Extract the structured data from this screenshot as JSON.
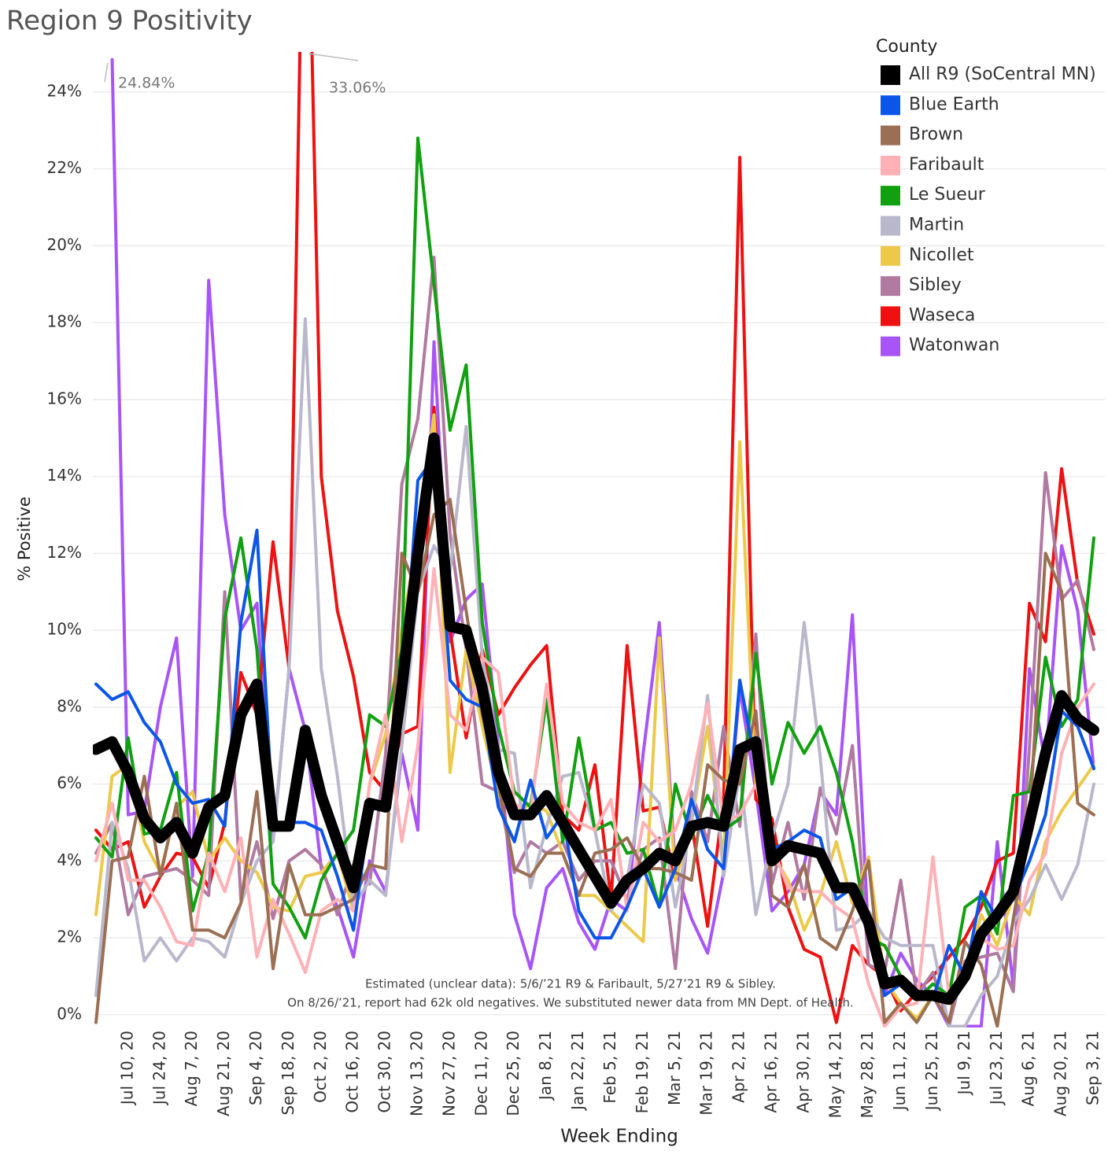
{
  "chart_data": {
    "type": "line",
    "title": "Region 9 Positivity",
    "x_label": "Week Ending",
    "y_label": "% Positive",
    "legend_title": "County",
    "legend": "top-right",
    "grid": true,
    "annotations": [
      "24.84%",
      "33.06%"
    ],
    "notes": [
      "Estimated (unclear data): 5/6/’21 R9 & Faribault,  5/27’21  R9 & Sibley.",
      "On 8/26/’21, report had 62k old negatives. We substituted newer data from MN Dept. of Health."
    ],
    "ylim": [
      -0.27,
      25
    ],
    "yticks": [
      {
        "value": 0,
        "label": "0%"
      },
      {
        "value": 2,
        "label": "2%"
      },
      {
        "value": 4,
        "label": "4%"
      },
      {
        "value": 6,
        "label": "6%"
      },
      {
        "value": 8,
        "label": "8%"
      },
      {
        "value": 10,
        "label": "10%"
      },
      {
        "value": 12,
        "label": "12%"
      },
      {
        "value": 14,
        "label": "14%"
      },
      {
        "value": 16,
        "label": "16%"
      },
      {
        "value": 18,
        "label": "18%"
      },
      {
        "value": 20,
        "label": "20%"
      },
      {
        "value": 22,
        "label": "22%"
      },
      {
        "value": 24,
        "label": "24%"
      }
    ],
    "categories": [
      null,
      null,
      "Jul 10, 20",
      null,
      "Jul 24, 20",
      null,
      "Aug 7, 20",
      null,
      "Aug 21, 20",
      null,
      "Sep 4, 20",
      null,
      "Sep 18, 20",
      null,
      "Oct 2, 20",
      null,
      "Oct 16, 20",
      null,
      "Oct 30, 20",
      null,
      "Nov 13, 20",
      null,
      "Nov 27, 20",
      null,
      "Dec 11, 20",
      null,
      "Dec 25, 20",
      null,
      "Jan 8, 21",
      null,
      "Jan 22, 21",
      null,
      "Feb 5, 21",
      null,
      "Feb 19, 21",
      null,
      "Mar 5, 21",
      null,
      "Mar 19, 21",
      null,
      "Apr 2, 21",
      null,
      "Apr 16, 21",
      null,
      "Apr 30, 21",
      null,
      "May 14, 21",
      null,
      "May 28, 21",
      null,
      "Jun 11, 21",
      null,
      "Jun 25, 21",
      null,
      "Jul 9, 21",
      null,
      "Jul 23, 21",
      null,
      "Aug 6, 21",
      null,
      "Aug 20, 21",
      null,
      "Sep 3, 21"
    ],
    "series": [
      {
        "name": "All R9 (SoCentral MN)",
        "color": "#000000",
        "values": [
          6.9,
          7.1,
          6.3,
          5.1,
          4.6,
          5.0,
          4.2,
          5.4,
          5.7,
          7.8,
          8.6,
          4.9,
          4.9,
          7.4,
          5.7,
          4.5,
          3.3,
          5.5,
          5.4,
          8.5,
          12.0,
          15.0,
          10.1,
          10.0,
          8.5,
          6.3,
          5.2,
          5.2,
          5.7,
          5.0,
          4.3,
          3.6,
          2.9,
          3.5,
          3.8,
          4.2,
          4.0,
          4.9,
          5.0,
          4.9,
          6.9,
          7.1,
          4.0,
          4.4,
          4.3,
          4.2,
          3.3,
          3.3,
          2.4,
          0.8,
          0.9,
          0.5,
          0.5,
          0.4,
          1.0,
          2.1,
          2.6,
          3.2,
          5.0,
          6.8,
          8.3,
          7.7,
          7.4
        ]
      },
      {
        "name": "Blue Earth",
        "color": "#0b56e8",
        "values": [
          8.6,
          8.2,
          8.4,
          7.6,
          7.1,
          6.0,
          5.5,
          5.6,
          4.9,
          10.2,
          12.6,
          5.0,
          5.0,
          5.0,
          4.8,
          3.6,
          2.2,
          5.3,
          5.5,
          8.0,
          13.9,
          14.5,
          8.7,
          8.2,
          8.0,
          5.4,
          4.5,
          6.1,
          4.6,
          5.2,
          2.7,
          2.0,
          2.0,
          2.8,
          3.8,
          2.8,
          3.8,
          5.6,
          4.3,
          3.8,
          8.7,
          6.5,
          4.3,
          4.5,
          4.8,
          4.6,
          3.0,
          3.3,
          2.5,
          0.5,
          0.8,
          0.4,
          0.4,
          1.8,
          1.0,
          3.2,
          2.5,
          3.0,
          4.0,
          5.2,
          7.9,
          7.5,
          6.4
        ]
      },
      {
        "name": "Brown",
        "color": "#9a6f53",
        "values": [
          -0.2,
          4.0,
          4.1,
          6.2,
          3.6,
          5.5,
          2.2,
          2.2,
          2.0,
          2.9,
          5.8,
          1.2,
          3.9,
          2.6,
          2.6,
          2.8,
          3.0,
          3.9,
          3.8,
          12.0,
          11.0,
          13.0,
          13.4,
          10.5,
          7.8,
          6.0,
          3.8,
          3.6,
          4.2,
          4.2,
          3.1,
          4.2,
          4.3,
          4.6,
          3.8,
          3.8,
          3.7,
          3.5,
          6.5,
          6.1,
          6.0,
          7.9,
          3.1,
          2.8,
          3.9,
          2.0,
          1.7,
          2.7,
          4.0,
          -0.2,
          0.3,
          -0.2,
          0.5,
          -0.2,
          1.9,
          1.3,
          -0.3,
          2.5,
          5.0,
          12.0,
          11.0,
          5.5,
          5.2
        ]
      },
      {
        "name": "Faribault",
        "color": "#ffb1b6",
        "values": [
          4.0,
          5.5,
          3.5,
          3.5,
          2.8,
          1.9,
          1.8,
          4.2,
          3.2,
          4.6,
          1.5,
          3.0,
          2.1,
          1.1,
          2.7,
          3.0,
          2.7,
          6.0,
          7.8,
          4.5,
          7.0,
          11.6,
          7.8,
          7.4,
          9.3,
          8.9,
          5.5,
          5.2,
          8.6,
          5.5,
          5.0,
          4.8,
          5.6,
          2.7,
          5.0,
          4.5,
          4.8,
          6.0,
          8.1,
          5.0,
          5.2,
          6.0,
          4.4,
          3.3,
          3.2,
          3.2,
          2.8,
          2.5,
          0.8,
          -0.3,
          0.2,
          0.3,
          4.1,
          0.5,
          1.0,
          2.0,
          1.7,
          1.8,
          3.5,
          4.2,
          6.8,
          8.0,
          8.6
        ]
      },
      {
        "name": "Le Sueur",
        "color": "#10a010",
        "values": [
          4.6,
          4.1,
          7.2,
          4.7,
          4.8,
          6.3,
          2.7,
          4.2,
          10.3,
          12.4,
          9.5,
          3.4,
          2.8,
          2.0,
          3.5,
          4.2,
          4.8,
          7.8,
          7.5,
          9.5,
          22.8,
          19.0,
          15.2,
          16.9,
          10.2,
          7.5,
          5.8,
          5.4,
          8.2,
          4.5,
          7.2,
          4.8,
          5.0,
          4.2,
          4.3,
          2.8,
          6.0,
          4.6,
          5.7,
          4.8,
          5.1,
          9.4,
          6.0,
          7.6,
          6.8,
          7.5,
          6.3,
          4.5,
          2.0,
          1.8,
          1.0,
          0.4,
          0.8,
          0.5,
          2.8,
          3.1,
          2.1,
          5.7,
          5.8,
          9.3,
          7.5,
          8.2,
          12.4
        ]
      },
      {
        "name": "Martin",
        "color": "#b9b7cb",
        "values": [
          0.5,
          5.0,
          3.8,
          1.4,
          2.0,
          1.4,
          2.0,
          1.9,
          1.5,
          2.9,
          4.0,
          4.5,
          9.0,
          18.1,
          9.0,
          6.2,
          2.8,
          3.5,
          3.1,
          7.0,
          11.0,
          12.2,
          11.5,
          15.3,
          9.3,
          6.9,
          6.8,
          3.3,
          4.9,
          6.2,
          6.3,
          4.8,
          2.7,
          3.5,
          6.0,
          5.5,
          2.8,
          5.0,
          8.3,
          3.6,
          6.3,
          2.6,
          4.6,
          6.0,
          10.2,
          6.7,
          2.2,
          2.3,
          2.7,
          2.0,
          1.8,
          1.8,
          1.8,
          -0.3,
          -0.3,
          0.5,
          1.0,
          2.4,
          3.0,
          3.9,
          3.0,
          3.9,
          6.0
        ]
      },
      {
        "name": "Nicollet",
        "color": "#ecc94b",
        "values": [
          2.6,
          6.2,
          6.5,
          4.5,
          3.7,
          5.4,
          5.8,
          4.0,
          4.6,
          4.0,
          3.7,
          2.8,
          2.7,
          3.6,
          3.7,
          4.2,
          2.7,
          6.0,
          7.3,
          10.0,
          12.5,
          15.6,
          6.3,
          9.5,
          7.5,
          5.7,
          5.2,
          5.5,
          5.3,
          4.2,
          3.1,
          3.1,
          2.7,
          2.3,
          1.9,
          9.8,
          3.5,
          5.0,
          7.5,
          4.0,
          14.9,
          6.0,
          4.2,
          3.5,
          2.2,
          3.1,
          4.5,
          2.9,
          4.1,
          0.9,
          0.3,
          -0.1,
          0.5,
          0.4,
          1.0,
          2.6,
          1.8,
          3.1,
          2.6,
          4.5,
          5.3,
          5.9,
          6.5
        ]
      },
      {
        "name": "Sibley",
        "color": "#b07aa1",
        "values": [
          4.2,
          5.0,
          2.6,
          3.6,
          3.7,
          3.8,
          3.5,
          3.1,
          11.0,
          3.0,
          4.5,
          2.5,
          4.0,
          4.3,
          3.9,
          2.6,
          3.9,
          3.4,
          6.8,
          13.8,
          15.5,
          19.7,
          12.5,
          9.5,
          6.0,
          5.8,
          3.7,
          4.5,
          4.2,
          4.5,
          3.5,
          4.0,
          4.0,
          3.0,
          4.3,
          4.6,
          1.2,
          5.8,
          4.5,
          7.5,
          4.9,
          9.9,
          3.4,
          5.0,
          3.0,
          5.9,
          4.7,
          7.0,
          1.3,
          1.1,
          3.5,
          0.5,
          1.1,
          -0.3,
          1.4,
          1.5,
          1.6,
          0.6,
          7.0,
          14.1,
          10.8,
          11.3,
          9.5
        ]
      },
      {
        "name": "Waseca",
        "color": "#ee1111",
        "values": [
          4.8,
          4.3,
          4.5,
          2.8,
          3.6,
          4.2,
          4.1,
          3.3,
          5.0,
          8.9,
          7.8,
          12.3,
          9.0,
          33.06,
          14.0,
          10.5,
          8.8,
          6.3,
          5.8,
          7.3,
          7.5,
          15.8,
          10.0,
          7.2,
          9.5,
          7.8,
          8.5,
          9.1,
          9.6,
          5.2,
          4.8,
          6.5,
          3.0,
          9.6,
          5.3,
          5.4,
          3.5,
          5.0,
          2.3,
          5.6,
          22.3,
          5.6,
          5.1,
          2.8,
          1.7,
          1.5,
          -0.2,
          1.8,
          1.3,
          1.0,
          0.1,
          0.6,
          1.0,
          1.5,
          2.0,
          2.8,
          4.0,
          4.2,
          10.7,
          9.7,
          14.2,
          11.2,
          9.9
        ]
      },
      {
        "name": "Watonwan",
        "color": "#a855f7",
        "values": [
          null,
          24.84,
          5.2,
          5.3,
          8.0,
          9.8,
          3.6,
          19.1,
          13.0,
          10.0,
          10.7,
          4.5,
          9.0,
          7.4,
          3.8,
          2.8,
          1.5,
          4.0,
          3.2,
          6.8,
          4.8,
          17.5,
          9.7,
          10.8,
          11.2,
          7.0,
          2.6,
          1.2,
          3.3,
          3.8,
          2.4,
          1.7,
          3.0,
          2.7,
          6.8,
          10.2,
          3.8,
          2.5,
          1.6,
          3.7,
          8.5,
          5.8,
          2.7,
          3.2,
          3.9,
          5.8,
          5.2,
          10.4,
          2.0,
          0.5,
          1.6,
          0.9,
          0.5,
          -0.3,
          -0.3,
          -0.3,
          4.5,
          0.7,
          9.0,
          6.5,
          12.2,
          10.5,
          6.4
        ]
      }
    ]
  }
}
